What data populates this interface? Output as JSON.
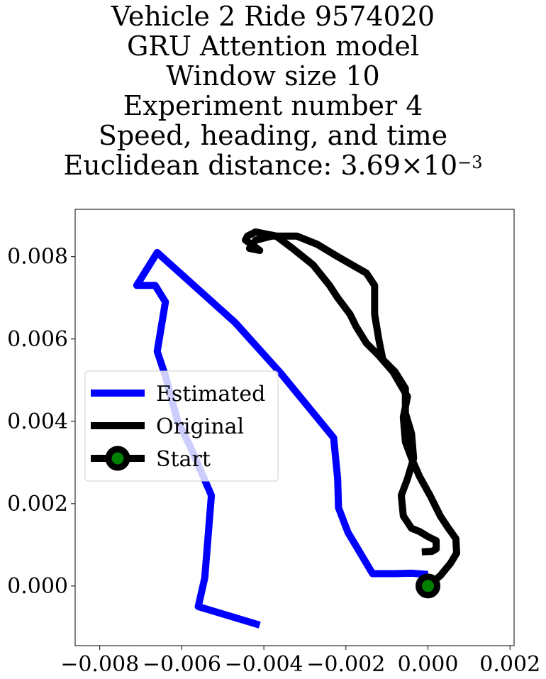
{
  "title_lines": [
    "Vehicle 2 Ride 9574020",
    "GRU Attention model",
    "Window size 10",
    "Experiment number 4",
    "Speed, heading, and time"
  ],
  "distance_label_prefix": "Euclidean distance: 3.69",
  "distance_label_times": "×",
  "distance_label_base": "10",
  "distance_label_exp": "−3",
  "chart_data": {
    "type": "line",
    "title": "Vehicle 2 Ride 9574020 GRU Attention model Window size 10 Experiment number 4 Speed, heading, and time Euclidean distance: 3.69×10^-3",
    "xlim": [
      -0.0086,
      0.0021
    ],
    "ylim": [
      -0.00145,
      0.00915
    ],
    "x_ticks": [
      -0.008,
      -0.006,
      -0.004,
      -0.002,
      0.0,
      0.002
    ],
    "x_tick_labels": [
      "−0.008",
      "−0.006",
      "−0.004",
      "−0.002",
      "0.000",
      "0.002"
    ],
    "y_ticks": [
      0.0,
      0.002,
      0.004,
      0.006,
      0.008
    ],
    "y_tick_labels": [
      "0.000",
      "0.002",
      "0.004",
      "0.006",
      "0.008"
    ],
    "grid": false,
    "legend_position": "center-left",
    "series": [
      {
        "name": "Estimated",
        "color": "#0000ff",
        "points": [
          [
            0.0,
            0.00028
          ],
          [
            -0.0004,
            0.00031
          ],
          [
            -0.0008,
            0.0003
          ],
          [
            -0.00135,
            0.0003
          ],
          [
            -0.00195,
            0.0013
          ],
          [
            -0.00218,
            0.0019
          ],
          [
            -0.0022,
            0.0026
          ],
          [
            -0.0023,
            0.0036
          ],
          [
            -0.0036,
            0.00518
          ],
          [
            -0.0047,
            0.0064
          ],
          [
            -0.0066,
            0.0081
          ],
          [
            -0.0071,
            0.0073
          ],
          [
            -0.00665,
            0.0073
          ],
          [
            -0.0064,
            0.0069
          ],
          [
            -0.0066,
            0.0057
          ],
          [
            -0.0064,
            0.0051
          ],
          [
            -0.0061,
            0.004
          ],
          [
            -0.0058,
            0.0034
          ],
          [
            -0.00528,
            0.0022
          ],
          [
            -0.00544,
            0.0002
          ],
          [
            -0.0056,
            -0.0005
          ],
          [
            -0.0041,
            -0.00095
          ]
        ]
      },
      {
        "name": "Original",
        "color": "#000000",
        "points": [
          [
            0.0,
            0.0
          ],
          [
            0.0003,
            0.00025
          ],
          [
            0.00055,
            0.00055
          ],
          [
            0.0007,
            0.0008
          ],
          [
            0.00068,
            0.00115
          ],
          [
            0.0005,
            0.0014
          ],
          [
            0.0003,
            0.0017
          ],
          [
            5e-05,
            0.0022
          ],
          [
            -0.0002,
            0.00265
          ],
          [
            -0.0004,
            0.0031
          ],
          [
            -0.00055,
            0.0035
          ],
          [
            -0.0006,
            0.0041
          ],
          [
            -0.0005,
            0.0046
          ],
          [
            -0.00085,
            0.0052
          ],
          [
            -0.0012,
            0.0056
          ],
          [
            -0.0015,
            0.0059
          ],
          [
            -0.00175,
            0.0063
          ],
          [
            -0.0019,
            0.0066
          ],
          [
            -0.0022,
            0.007
          ],
          [
            -0.0024,
            0.0073
          ],
          [
            -0.0028,
            0.0078
          ],
          [
            -0.0033,
            0.0082
          ],
          [
            -0.0037,
            0.0085
          ],
          [
            -0.0042,
            0.0086
          ],
          [
            -0.0044,
            0.0085
          ],
          [
            -0.00445,
            0.0084
          ],
          [
            -0.0043,
            0.0083
          ],
          [
            -0.0041,
            0.00815
          ],
          [
            -0.00435,
            0.0082
          ],
          [
            -0.0042,
            0.0084
          ],
          [
            -0.0038,
            0.0085
          ],
          [
            -0.0032,
            0.0085
          ],
          [
            -0.0027,
            0.0083
          ],
          [
            -0.0022,
            0.008
          ],
          [
            -0.0015,
            0.0076
          ],
          [
            -0.0013,
            0.0073
          ],
          [
            -0.0013,
            0.0066
          ],
          [
            -0.0012,
            0.006
          ],
          [
            -0.0011,
            0.0055
          ],
          [
            -0.0008,
            0.0052
          ],
          [
            -0.00055,
            0.0048
          ],
          [
            -0.00055,
            0.0042
          ],
          [
            -0.0004,
            0.0037
          ],
          [
            -0.00035,
            0.0031
          ],
          [
            -0.0005,
            0.0026
          ],
          [
            -0.00065,
            0.0022
          ],
          [
            -0.0006,
            0.0017
          ],
          [
            -0.0004,
            0.0014
          ],
          [
            -0.0002,
            0.00132
          ],
          [
            0.0,
            0.0012
          ],
          [
            0.0002,
            0.0011
          ],
          [
            0.0002,
            0.0009
          ],
          [
            0.0001,
            0.00084
          ],
          [
            -0.00015,
            0.00083
          ]
        ]
      }
    ],
    "start_point": {
      "name": "Start",
      "x": 0.0,
      "y": 0.0,
      "marker_face_color": "#008000",
      "marker_edge_color": "#000000"
    }
  }
}
